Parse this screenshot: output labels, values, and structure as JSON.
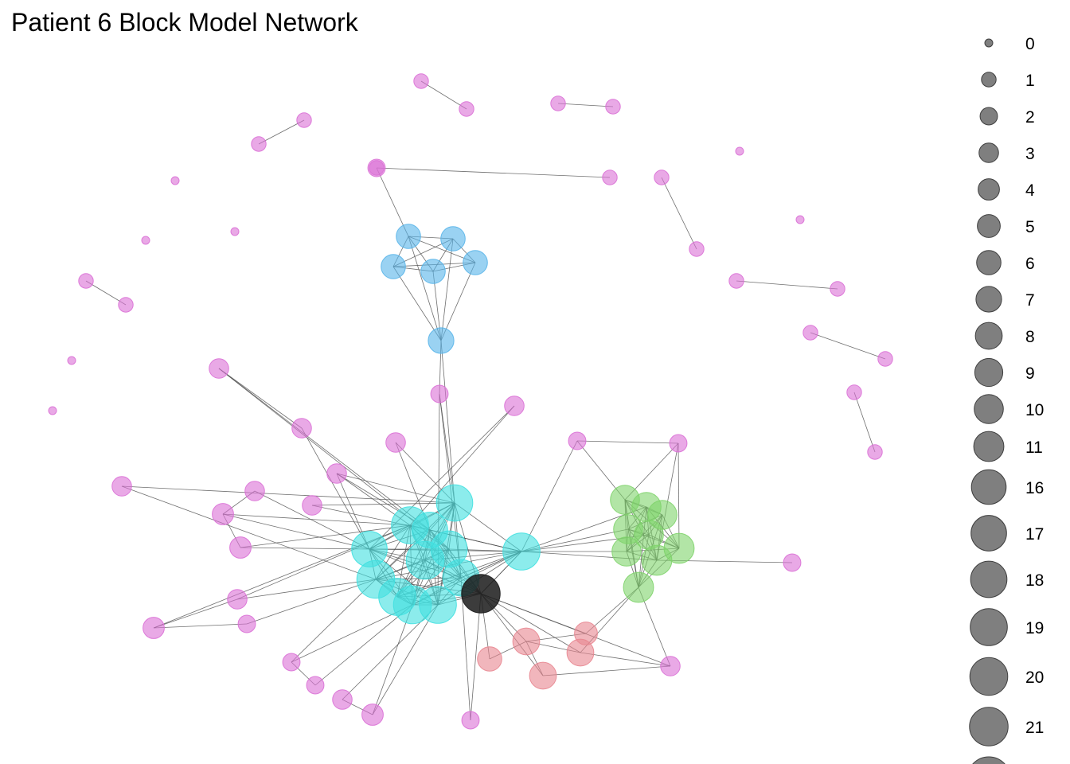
{
  "title": "Patient 6 Block Model Network",
  "colors": {
    "magenta": "#DA70D6",
    "blue": "#56B4E9",
    "cyan": "#40E0E0",
    "green": "#7ED36A",
    "red": "#E8858F",
    "black": "#1A1A1A",
    "edge": "#555555",
    "legend_fill": "#7F7F7F"
  },
  "legend": {
    "entries": [
      "0",
      "1",
      "2",
      "3",
      "4",
      "5",
      "6",
      "7",
      "8",
      "9",
      "10",
      "11",
      "16",
      "17",
      "18",
      "19",
      "20",
      "21"
    ]
  },
  "nodes": [
    {
      "id": "p1",
      "g": "magenta",
      "d": 1
    },
    {
      "id": "p2",
      "g": "magenta",
      "d": 1
    },
    {
      "id": "p3",
      "g": "magenta",
      "d": 1
    },
    {
      "id": "p4",
      "g": "magenta",
      "d": 1
    },
    {
      "id": "p5",
      "g": "magenta",
      "d": 1
    },
    {
      "id": "p6",
      "g": "magenta",
      "d": 1
    },
    {
      "id": "p7",
      "g": "magenta",
      "d": 0
    },
    {
      "id": "p8",
      "g": "magenta",
      "d": 0
    },
    {
      "id": "p9",
      "g": "magenta",
      "d": 0
    },
    {
      "id": "p10",
      "g": "magenta",
      "d": 1
    },
    {
      "id": "p11",
      "g": "magenta",
      "d": 1
    },
    {
      "id": "p12",
      "g": "magenta",
      "d": 1
    },
    {
      "id": "p13",
      "g": "magenta",
      "d": 1
    },
    {
      "id": "p14",
      "g": "magenta",
      "d": 0
    },
    {
      "id": "p15",
      "g": "magenta",
      "d": 0
    },
    {
      "id": "p16",
      "g": "magenta",
      "d": 1
    },
    {
      "id": "p17",
      "g": "magenta",
      "d": 1
    },
    {
      "id": "p18",
      "g": "magenta",
      "d": 1
    },
    {
      "id": "p19",
      "g": "magenta",
      "d": 1
    },
    {
      "id": "p20",
      "g": "magenta",
      "d": 1
    },
    {
      "id": "p21",
      "g": "magenta",
      "d": 1
    },
    {
      "id": "p22",
      "g": "magenta",
      "d": 1
    },
    {
      "id": "p23",
      "g": "magenta",
      "d": 1
    },
    {
      "id": "p24",
      "g": "magenta",
      "d": 0
    },
    {
      "id": "p25",
      "g": "magenta",
      "d": 0
    },
    {
      "id": "p26",
      "g": "magenta",
      "d": 2
    },
    {
      "id": "p27",
      "g": "magenta",
      "d": 2
    },
    {
      "id": "p28",
      "g": "magenta",
      "d": 2
    },
    {
      "id": "p29",
      "g": "magenta",
      "d": 2
    },
    {
      "id": "p30",
      "g": "magenta",
      "d": 3
    },
    {
      "id": "p31",
      "g": "magenta",
      "d": 3
    },
    {
      "id": "p32",
      "g": "magenta",
      "d": 3
    },
    {
      "id": "p33",
      "g": "magenta",
      "d": 3
    },
    {
      "id": "p34",
      "g": "magenta",
      "d": 3
    },
    {
      "id": "p35",
      "g": "magenta",
      "d": 3
    },
    {
      "id": "p36",
      "g": "magenta",
      "d": 3
    },
    {
      "id": "p37",
      "g": "magenta",
      "d": 4
    },
    {
      "id": "p38",
      "g": "magenta",
      "d": 3
    },
    {
      "id": "p39",
      "g": "magenta",
      "d": 4
    },
    {
      "id": "p40",
      "g": "magenta",
      "d": 4
    },
    {
      "id": "p41",
      "g": "magenta",
      "d": 3
    },
    {
      "id": "p42",
      "g": "magenta",
      "d": 2
    },
    {
      "id": "p43",
      "g": "magenta",
      "d": 2
    },
    {
      "id": "p44",
      "g": "magenta",
      "d": 2
    },
    {
      "id": "p45",
      "g": "magenta",
      "d": 3
    },
    {
      "id": "p46",
      "g": "magenta",
      "d": 4
    },
    {
      "id": "p47",
      "g": "magenta",
      "d": 2
    },
    {
      "id": "p48",
      "g": "magenta",
      "d": 3
    },
    {
      "id": "p49",
      "g": "magenta",
      "d": 2
    },
    {
      "id": "b1",
      "g": "blue",
      "d": 6
    },
    {
      "id": "b2",
      "g": "blue",
      "d": 6
    },
    {
      "id": "b3",
      "g": "blue",
      "d": 6
    },
    {
      "id": "b4",
      "g": "blue",
      "d": 6
    },
    {
      "id": "b5",
      "g": "blue",
      "d": 6
    },
    {
      "id": "b6",
      "g": "blue",
      "d": 7
    },
    {
      "id": "c1",
      "g": "cyan",
      "d": 17
    },
    {
      "id": "c2",
      "g": "cyan",
      "d": 19
    },
    {
      "id": "c3",
      "g": "cyan",
      "d": 20
    },
    {
      "id": "c4",
      "g": "cyan",
      "d": 18
    },
    {
      "id": "c5",
      "g": "cyan",
      "d": 17
    },
    {
      "id": "c6",
      "g": "cyan",
      "d": 18
    },
    {
      "id": "c7",
      "g": "cyan",
      "d": 19
    },
    {
      "id": "c8",
      "g": "cyan",
      "d": 20
    },
    {
      "id": "c9",
      "g": "cyan",
      "d": 19
    },
    {
      "id": "c10",
      "g": "cyan",
      "d": 18
    },
    {
      "id": "c11",
      "g": "cyan",
      "d": 19
    },
    {
      "id": "c12",
      "g": "cyan",
      "d": 20
    },
    {
      "id": "k1",
      "g": "black",
      "d": 21
    },
    {
      "id": "g1",
      "g": "green",
      "d": 10
    },
    {
      "id": "g2",
      "g": "green",
      "d": 10
    },
    {
      "id": "g3",
      "g": "green",
      "d": 10
    },
    {
      "id": "g4",
      "g": "green",
      "d": 10
    },
    {
      "id": "g5",
      "g": "green",
      "d": 10
    },
    {
      "id": "g6",
      "g": "green",
      "d": 11
    },
    {
      "id": "g7",
      "g": "green",
      "d": 10
    },
    {
      "id": "g8",
      "g": "green",
      "d": 11
    },
    {
      "id": "g9",
      "g": "green",
      "d": 11
    },
    {
      "id": "r1",
      "g": "red",
      "d": 5
    },
    {
      "id": "r2",
      "g": "red",
      "d": 8
    },
    {
      "id": "r3",
      "g": "red",
      "d": 8
    },
    {
      "id": "r4",
      "g": "red",
      "d": 8
    },
    {
      "id": "r5",
      "g": "red",
      "d": 6
    }
  ],
  "edges": [
    [
      "p1",
      "p2"
    ],
    [
      "p3",
      "p4"
    ],
    [
      "p5",
      "p6"
    ],
    [
      "p10",
      "p11"
    ],
    [
      "p12",
      "p13"
    ],
    [
      "p16",
      "p17"
    ],
    [
      "p18",
      "p19"
    ],
    [
      "p20",
      "p21"
    ],
    [
      "p22",
      "p23"
    ],
    [
      "p26",
      "b1"
    ],
    [
      "b1",
      "b2"
    ],
    [
      "b1",
      "b3"
    ],
    [
      "b1",
      "b4"
    ],
    [
      "b1",
      "b5"
    ],
    [
      "b2",
      "b3"
    ],
    [
      "b2",
      "b4"
    ],
    [
      "b2",
      "b5"
    ],
    [
      "b3",
      "b4"
    ],
    [
      "b3",
      "b5"
    ],
    [
      "b4",
      "b5"
    ],
    [
      "b1",
      "b6"
    ],
    [
      "b2",
      "b6"
    ],
    [
      "b3",
      "b6"
    ],
    [
      "b4",
      "b6"
    ],
    [
      "b5",
      "b6"
    ],
    [
      "b6",
      "c4"
    ],
    [
      "b6",
      "p27"
    ],
    [
      "c1",
      "c2"
    ],
    [
      "c1",
      "c3"
    ],
    [
      "c1",
      "c4"
    ],
    [
      "c1",
      "c5"
    ],
    [
      "c1",
      "c6"
    ],
    [
      "c1",
      "c7"
    ],
    [
      "c1",
      "c8"
    ],
    [
      "c1",
      "c9"
    ],
    [
      "c1",
      "c10"
    ],
    [
      "c1",
      "c11"
    ],
    [
      "c1",
      "c12"
    ],
    [
      "c2",
      "c3"
    ],
    [
      "c2",
      "c4"
    ],
    [
      "c2",
      "c5"
    ],
    [
      "c2",
      "c6"
    ],
    [
      "c2",
      "c7"
    ],
    [
      "c2",
      "c8"
    ],
    [
      "c2",
      "c9"
    ],
    [
      "c2",
      "c10"
    ],
    [
      "c2",
      "c11"
    ],
    [
      "c2",
      "c12"
    ],
    [
      "c3",
      "c4"
    ],
    [
      "c3",
      "c5"
    ],
    [
      "c3",
      "c6"
    ],
    [
      "c3",
      "c7"
    ],
    [
      "c3",
      "c8"
    ],
    [
      "c3",
      "c9"
    ],
    [
      "c3",
      "c10"
    ],
    [
      "c3",
      "c11"
    ],
    [
      "c3",
      "c12"
    ],
    [
      "c4",
      "c5"
    ],
    [
      "c4",
      "c6"
    ],
    [
      "c4",
      "c7"
    ],
    [
      "c4",
      "c8"
    ],
    [
      "c4",
      "c9"
    ],
    [
      "c4",
      "c10"
    ],
    [
      "c4",
      "c11"
    ],
    [
      "c4",
      "c12"
    ],
    [
      "c5",
      "c6"
    ],
    [
      "c5",
      "c7"
    ],
    [
      "c5",
      "c8"
    ],
    [
      "c5",
      "c9"
    ],
    [
      "c5",
      "c10"
    ],
    [
      "c5",
      "c11"
    ],
    [
      "c5",
      "c12"
    ],
    [
      "c6",
      "c7"
    ],
    [
      "c6",
      "c8"
    ],
    [
      "c6",
      "c9"
    ],
    [
      "c6",
      "c10"
    ],
    [
      "c6",
      "c11"
    ],
    [
      "c6",
      "c12"
    ],
    [
      "c7",
      "c8"
    ],
    [
      "c7",
      "c9"
    ],
    [
      "c7",
      "c10"
    ],
    [
      "c7",
      "c11"
    ],
    [
      "c7",
      "c12"
    ],
    [
      "c8",
      "c9"
    ],
    [
      "c8",
      "c10"
    ],
    [
      "c8",
      "c11"
    ],
    [
      "c8",
      "c12"
    ],
    [
      "c9",
      "c10"
    ],
    [
      "c9",
      "c11"
    ],
    [
      "c9",
      "c12"
    ],
    [
      "c10",
      "c11"
    ],
    [
      "c10",
      "c12"
    ],
    [
      "c11",
      "c12"
    ],
    [
      "k1",
      "c1"
    ],
    [
      "k1",
      "c2"
    ],
    [
      "k1",
      "c3"
    ],
    [
      "k1",
      "c4"
    ],
    [
      "k1",
      "c5"
    ],
    [
      "k1",
      "c6"
    ],
    [
      "k1",
      "c7"
    ],
    [
      "k1",
      "c8"
    ],
    [
      "k1",
      "c9"
    ],
    [
      "k1",
      "c10"
    ],
    [
      "k1",
      "c11"
    ],
    [
      "k1",
      "c12"
    ],
    [
      "k1",
      "r1"
    ],
    [
      "k1",
      "r2"
    ],
    [
      "k1",
      "r3"
    ],
    [
      "k1",
      "r4"
    ],
    [
      "k1",
      "r5"
    ],
    [
      "k1",
      "p49"
    ],
    [
      "k1",
      "p48"
    ],
    [
      "r1",
      "r2"
    ],
    [
      "r2",
      "r3"
    ],
    [
      "r2",
      "r4"
    ],
    [
      "r4",
      "p48"
    ],
    [
      "r3",
      "p48"
    ],
    [
      "r2",
      "r5"
    ],
    [
      "r1",
      "g9"
    ],
    [
      "r3",
      "g9"
    ],
    [
      "g1",
      "g2"
    ],
    [
      "g1",
      "g3"
    ],
    [
      "g1",
      "g4"
    ],
    [
      "g1",
      "g5"
    ],
    [
      "g1",
      "g6"
    ],
    [
      "g1",
      "g7"
    ],
    [
      "g1",
      "g8"
    ],
    [
      "g1",
      "g9"
    ],
    [
      "g2",
      "g3"
    ],
    [
      "g2",
      "g4"
    ],
    [
      "g2",
      "g5"
    ],
    [
      "g2",
      "g6"
    ],
    [
      "g2",
      "g7"
    ],
    [
      "g2",
      "g8"
    ],
    [
      "g2",
      "g9"
    ],
    [
      "g3",
      "g4"
    ],
    [
      "g3",
      "g5"
    ],
    [
      "g3",
      "g6"
    ],
    [
      "g3",
      "g7"
    ],
    [
      "g3",
      "g8"
    ],
    [
      "g3",
      "g9"
    ],
    [
      "g4",
      "g5"
    ],
    [
      "g4",
      "g6"
    ],
    [
      "g4",
      "g7"
    ],
    [
      "g4",
      "g8"
    ],
    [
      "g4",
      "g9"
    ],
    [
      "g5",
      "g6"
    ],
    [
      "g5",
      "g7"
    ],
    [
      "g5",
      "g8"
    ],
    [
      "g5",
      "g9"
    ],
    [
      "g6",
      "g7"
    ],
    [
      "g6",
      "g8"
    ],
    [
      "g6",
      "g9"
    ],
    [
      "g7",
      "g8"
    ],
    [
      "g7",
      "g9"
    ],
    [
      "g8",
      "g9"
    ],
    [
      "p28",
      "p29"
    ],
    [
      "p28",
      "g1"
    ],
    [
      "p29",
      "g1"
    ],
    [
      "p29",
      "g6"
    ],
    [
      "p29",
      "g8"
    ],
    [
      "p28",
      "c11"
    ],
    [
      "g8",
      "p47"
    ],
    [
      "g9",
      "p48"
    ],
    [
      "c11",
      "g4"
    ],
    [
      "c11",
      "g5"
    ],
    [
      "c11",
      "g7"
    ],
    [
      "c11",
      "g2"
    ],
    [
      "c11",
      "g8"
    ],
    [
      "c11",
      "k1"
    ],
    [
      "c11",
      "c10"
    ],
    [
      "c11",
      "c5"
    ],
    [
      "p30",
      "c5"
    ],
    [
      "p30",
      "c6"
    ],
    [
      "p31",
      "p30"
    ],
    [
      "p31",
      "c1"
    ],
    [
      "p32",
      "c4"
    ],
    [
      "p32",
      "c5"
    ],
    [
      "p33",
      "c1"
    ],
    [
      "p33",
      "c2"
    ],
    [
      "p34",
      "c3"
    ],
    [
      "p34",
      "c4"
    ],
    [
      "p35",
      "c1"
    ],
    [
      "p35",
      "c5"
    ],
    [
      "p35",
      "c2"
    ],
    [
      "p36",
      "c4"
    ],
    [
      "p36",
      "c5"
    ],
    [
      "p37",
      "p38"
    ],
    [
      "p37",
      "p39"
    ],
    [
      "p37",
      "c1"
    ],
    [
      "p37",
      "c2"
    ],
    [
      "p38",
      "c1"
    ],
    [
      "p39",
      "c1"
    ],
    [
      "p39",
      "c2"
    ],
    [
      "p40",
      "p41"
    ],
    [
      "p40",
      "p42"
    ],
    [
      "p41",
      "c3"
    ],
    [
      "p41",
      "c2"
    ],
    [
      "p42",
      "c3"
    ],
    [
      "p40",
      "c2"
    ],
    [
      "p43",
      "c3"
    ],
    [
      "p43",
      "c8"
    ],
    [
      "p44",
      "c8"
    ],
    [
      "p45",
      "c9"
    ],
    [
      "p45",
      "p46"
    ],
    [
      "p46",
      "c8"
    ],
    [
      "p49",
      "c10"
    ],
    [
      "p27",
      "c4"
    ],
    [
      "p27",
      "c9"
    ],
    [
      "p27",
      "c10"
    ],
    [
      "c4",
      "p35"
    ],
    [
      "p43",
      "p44"
    ],
    [
      "p46",
      "c9"
    ]
  ]
}
